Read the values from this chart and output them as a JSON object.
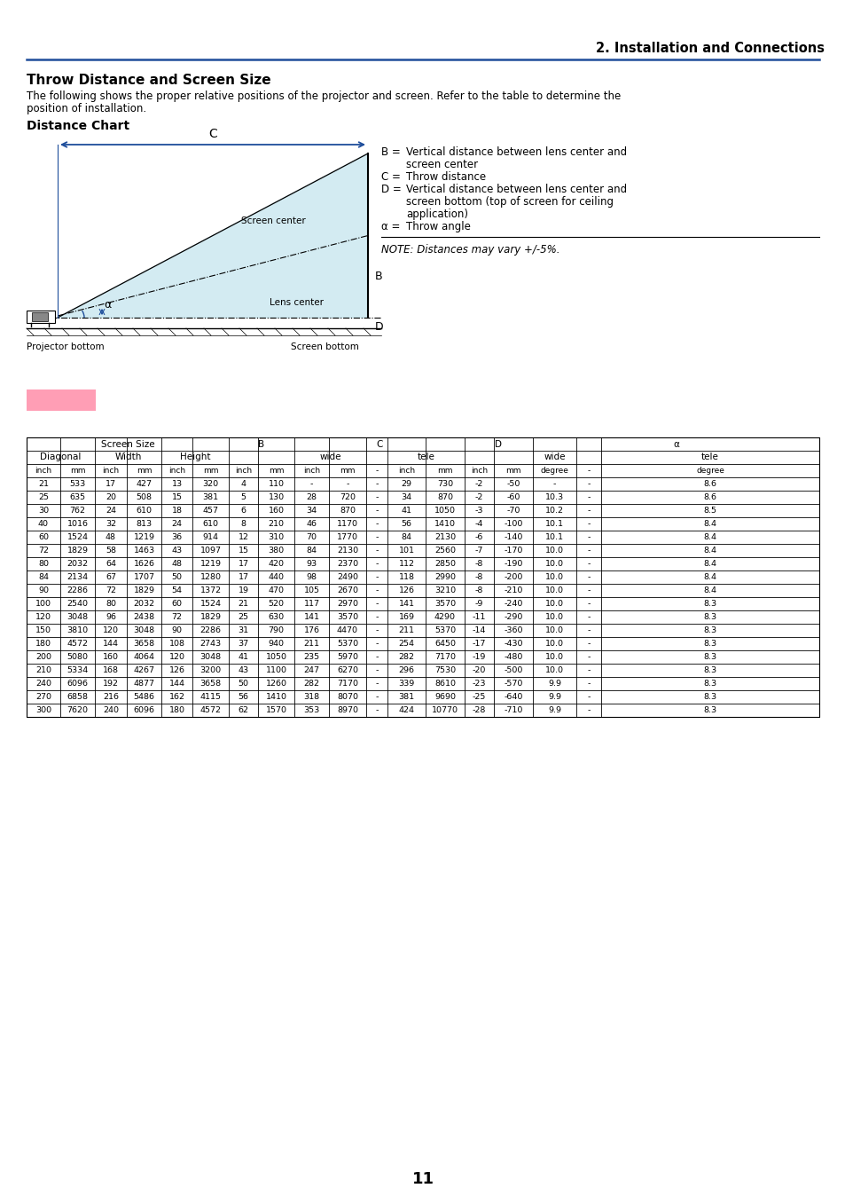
{
  "title_section": "2. Installation and Connections",
  "section_title": "Throw Distance and Screen Size",
  "body_line1": "The following shows the proper relative positions of the projector and screen. Refer to the table to determine the",
  "body_line2": "position of installation.",
  "subsection_title": "Distance Chart",
  "note": "NOTE: Distances may vary +/-5%.",
  "page_number": "11",
  "line_color": "#1e4d9b",
  "pink_color": "#ff9eb5",
  "bg_color": "#ffffff",
  "table_data": [
    [
      21,
      533,
      17,
      427,
      13,
      320,
      4,
      110,
      "-",
      "-",
      "-",
      29,
      730,
      -2,
      -50,
      "-",
      "-",
      8.6
    ],
    [
      25,
      635,
      20,
      508,
      15,
      381,
      5,
      130,
      28,
      720,
      "-",
      34,
      870,
      -2,
      -60,
      10.3,
      "-",
      8.6
    ],
    [
      30,
      762,
      24,
      610,
      18,
      457,
      6,
      160,
      34,
      870,
      "-",
      41,
      1050,
      -3,
      -70,
      10.2,
      "-",
      8.5
    ],
    [
      40,
      1016,
      32,
      813,
      24,
      610,
      8,
      210,
      46,
      1170,
      "-",
      56,
      1410,
      -4,
      -100,
      10.1,
      "-",
      8.4
    ],
    [
      60,
      1524,
      48,
      1219,
      36,
      914,
      12,
      310,
      70,
      1770,
      "-",
      84,
      2130,
      -6,
      -140,
      10.1,
      "-",
      8.4
    ],
    [
      72,
      1829,
      58,
      1463,
      43,
      1097,
      15,
      380,
      84,
      2130,
      "-",
      101,
      2560,
      -7,
      -170,
      10.0,
      "-",
      8.4
    ],
    [
      80,
      2032,
      64,
      1626,
      48,
      1219,
      17,
      420,
      93,
      2370,
      "-",
      112,
      2850,
      -8,
      -190,
      10.0,
      "-",
      8.4
    ],
    [
      84,
      2134,
      67,
      1707,
      50,
      1280,
      17,
      440,
      98,
      2490,
      "-",
      118,
      2990,
      -8,
      -200,
      10.0,
      "-",
      8.4
    ],
    [
      90,
      2286,
      72,
      1829,
      54,
      1372,
      19,
      470,
      105,
      2670,
      "-",
      126,
      3210,
      -8,
      -210,
      10.0,
      "-",
      8.4
    ],
    [
      100,
      2540,
      80,
      2032,
      60,
      1524,
      21,
      520,
      117,
      2970,
      "-",
      141,
      3570,
      -9,
      -240,
      10.0,
      "-",
      8.3
    ],
    [
      120,
      3048,
      96,
      2438,
      72,
      1829,
      25,
      630,
      141,
      3570,
      "-",
      169,
      4290,
      -11,
      -290,
      10.0,
      "-",
      8.3
    ],
    [
      150,
      3810,
      120,
      3048,
      90,
      2286,
      31,
      790,
      176,
      4470,
      "-",
      211,
      5370,
      -14,
      "-360",
      10.0,
      "-",
      8.3
    ],
    [
      180,
      4572,
      144,
      3658,
      108,
      2743,
      37,
      940,
      211,
      5370,
      "-",
      254,
      6450,
      -17,
      -430,
      10.0,
      "-",
      8.3
    ],
    [
      200,
      5080,
      160,
      4064,
      120,
      3048,
      41,
      1050,
      235,
      5970,
      "-",
      282,
      7170,
      -19,
      -480,
      10.0,
      "-",
      8.3
    ],
    [
      210,
      5334,
      168,
      4267,
      126,
      3200,
      43,
      1100,
      247,
      6270,
      "-",
      296,
      7530,
      -20,
      -500,
      10.0,
      "-",
      8.3
    ],
    [
      240,
      6096,
      192,
      4877,
      144,
      3658,
      50,
      1260,
      282,
      7170,
      "-",
      339,
      8610,
      -23,
      -570,
      9.9,
      "-",
      8.3
    ],
    [
      270,
      6858,
      216,
      5486,
      162,
      4115,
      56,
      1410,
      318,
      8070,
      "-",
      381,
      9690,
      -25,
      -640,
      9.9,
      "-",
      8.3
    ],
    [
      300,
      7620,
      240,
      6096,
      180,
      4572,
      62,
      1570,
      353,
      8970,
      "-",
      424,
      10770,
      -28,
      -710,
      9.9,
      "-",
      8.3
    ]
  ]
}
